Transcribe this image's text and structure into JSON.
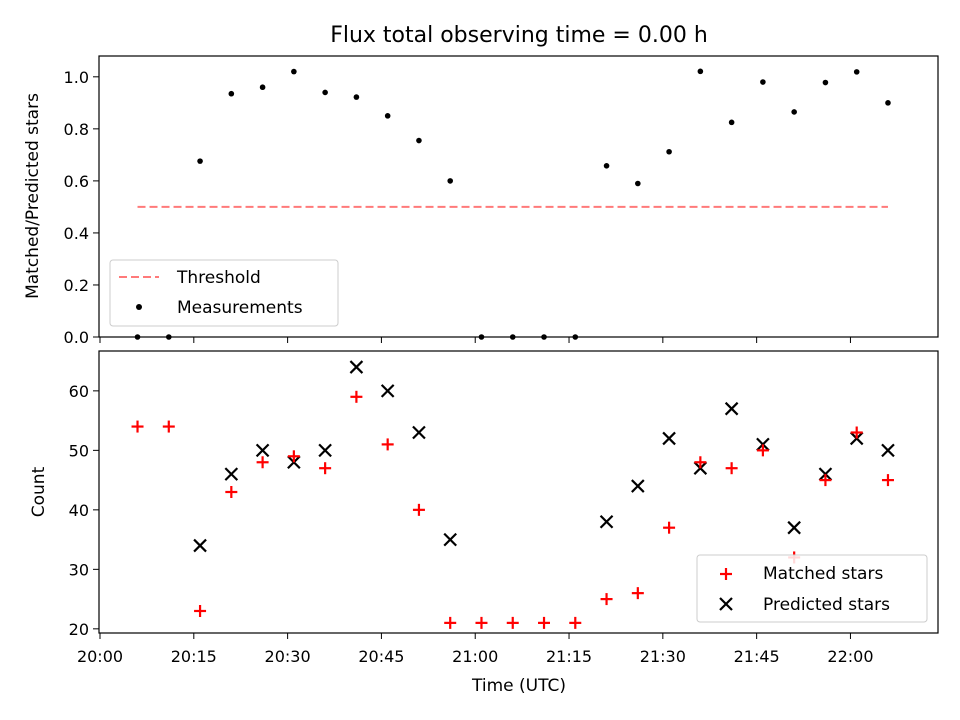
{
  "chart_data": [
    {
      "type": "scatter",
      "title": "Flux total observing time = 0.00 h",
      "ylabel": "Matched/Predicted stars",
      "xlabel": "",
      "xlim": [
        "20:00",
        "22:14"
      ],
      "ylim": [
        0,
        1.08
      ],
      "yticks": [
        0.0,
        0.2,
        0.4,
        0.6,
        0.8,
        1.0
      ],
      "ytick_labels": [
        "0.0",
        "0.2",
        "0.4",
        "0.6",
        "0.8",
        "1.0"
      ],
      "xticks": [
        "20:00",
        "20:15",
        "20:30",
        "20:45",
        "21:00",
        "21:15",
        "21:30",
        "21:45",
        "22:00"
      ],
      "legend_position": "lower-left",
      "threshold": {
        "name": "Threshold",
        "value": 0.5,
        "x_start": "20:06",
        "x_end": "22:06",
        "color": "#ff7a7a",
        "style": "dashed"
      },
      "series": [
        {
          "name": "Measurements",
          "color": "#000000",
          "marker": "dot",
          "x": [
            "20:06",
            "20:11",
            "20:16",
            "20:21",
            "20:26",
            "20:31",
            "20:36",
            "20:41",
            "20:46",
            "20:51",
            "20:56",
            "21:01",
            "21:06",
            "21:11",
            "21:16",
            "21:21",
            "21:26",
            "21:31",
            "21:36",
            "21:41",
            "21:46",
            "21:51",
            "21:56",
            "22:01",
            "22:06"
          ],
          "y": [
            0.0,
            0.0,
            0.676,
            0.935,
            0.96,
            1.02,
            0.94,
            0.922,
            0.85,
            0.755,
            0.6,
            0.0,
            0.0,
            0.0,
            0.0,
            0.658,
            0.59,
            0.712,
            1.021,
            0.825,
            0.98,
            0.865,
            0.978,
            1.019,
            0.9
          ]
        }
      ]
    },
    {
      "type": "scatter",
      "title": "",
      "xlabel": "Time (UTC)",
      "ylabel": "Count",
      "xlim": [
        "20:00",
        "22:14"
      ],
      "ylim": [
        19.3,
        66.7
      ],
      "yticks": [
        20,
        30,
        40,
        50,
        60
      ],
      "ytick_labels": [
        "20",
        "30",
        "40",
        "50",
        "60"
      ],
      "xticks": [
        "20:00",
        "20:15",
        "20:30",
        "20:45",
        "21:00",
        "21:15",
        "21:30",
        "21:45",
        "22:00"
      ],
      "xtick_labels": [
        "20:00",
        "20:15",
        "20:30",
        "20:45",
        "21:00",
        "21:15",
        "21:30",
        "21:45",
        "22:00"
      ],
      "legend_position": "lower-right",
      "series": [
        {
          "name": "Matched stars",
          "color": "#ff0000",
          "marker": "plus",
          "x": [
            "20:06",
            "20:11",
            "20:16",
            "20:21",
            "20:26",
            "20:31",
            "20:36",
            "20:41",
            "20:46",
            "20:51",
            "20:56",
            "21:01",
            "21:06",
            "21:11",
            "21:16",
            "21:21",
            "21:26",
            "21:31",
            "21:36",
            "21:41",
            "21:46",
            "21:51",
            "21:56",
            "22:01",
            "22:06"
          ],
          "y": [
            54,
            54,
            23,
            43,
            48,
            49,
            47,
            59,
            51,
            40,
            21,
            21,
            21,
            21,
            21,
            25,
            26,
            37,
            48,
            47,
            50,
            32,
            45,
            53,
            45
          ]
        },
        {
          "name": "Predicted stars",
          "color": "#000000",
          "marker": "x",
          "x": [
            "20:16",
            "20:21",
            "20:26",
            "20:31",
            "20:36",
            "20:41",
            "20:46",
            "20:51",
            "20:56",
            "21:21",
            "21:26",
            "21:31",
            "21:36",
            "21:41",
            "21:46",
            "21:51",
            "21:56",
            "22:01",
            "22:06"
          ],
          "y": [
            34,
            46,
            50,
            48,
            50,
            64,
            60,
            53,
            35,
            38,
            44,
            52,
            47,
            57,
            51,
            37,
            46,
            52,
            50
          ]
        }
      ]
    }
  ]
}
